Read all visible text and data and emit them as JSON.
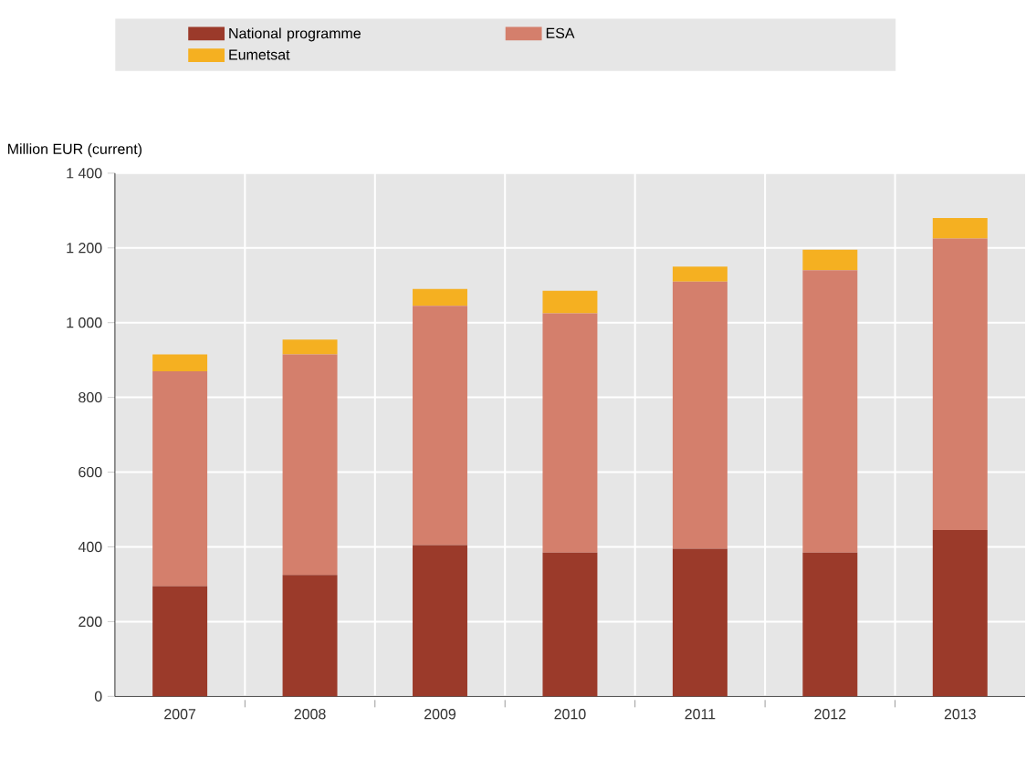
{
  "chart_data": {
    "type": "bar",
    "stacked": true,
    "ylabel": "Million EUR (current)",
    "categories": [
      "2007",
      "2008",
      "2009",
      "2010",
      "2011",
      "2012",
      "2013"
    ],
    "series": [
      {
        "name": "National programme",
        "color": "#9b3a2a",
        "values": [
          295,
          325,
          405,
          385,
          395,
          385,
          445
        ]
      },
      {
        "name": "ESA",
        "color": "#d47f6c",
        "values": [
          575,
          590,
          640,
          640,
          715,
          755,
          780
        ]
      },
      {
        "name": "Eumetsat",
        "color": "#f5b021",
        "values": [
          45,
          40,
          45,
          60,
          40,
          55,
          55
        ]
      }
    ],
    "ylim": [
      0,
      1400
    ],
    "yticks": [
      0,
      200,
      400,
      600,
      800,
      {
        "value": 1000,
        "label": "1 000"
      },
      {
        "value": 1200,
        "label": "1 200"
      },
      {
        "value": 1400,
        "label": "1 400"
      }
    ],
    "grid": true,
    "legend": "top"
  }
}
